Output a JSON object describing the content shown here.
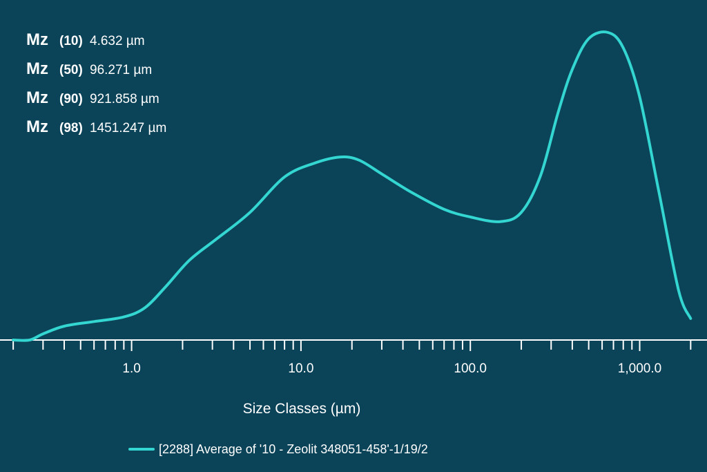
{
  "stats": [
    {
      "label": "Mz",
      "pct": "(10)",
      "value": "4.632 µm"
    },
    {
      "label": "Mz",
      "pct": "(50)",
      "value": "96.271 µm"
    },
    {
      "label": "Mz",
      "pct": "(90)",
      "value": "921.858 µm"
    },
    {
      "label": "Mz",
      "pct": "(98)",
      "value": "1451.247 µm"
    }
  ],
  "legend": {
    "label": "[2288] Average of '10 - Zeolit   348051-458'-1/19/2"
  },
  "colors": {
    "background": "#0b4359",
    "curve": "#33d6d0",
    "axis": "#ffffff"
  },
  "chart_data": {
    "type": "line",
    "xlabel": "Size Classes (µm)",
    "x_scale": "log",
    "xlim": [
      0.2,
      2000
    ],
    "ylim": [
      0,
      1
    ],
    "grid": false,
    "legend_position": "bottom",
    "x_tick_labels": [
      {
        "value": 1,
        "label": "1.0"
      },
      {
        "value": 10,
        "label": "10.0"
      },
      {
        "value": 100,
        "label": "100.0"
      },
      {
        "value": 1000,
        "label": "1,000.0"
      }
    ],
    "series": [
      {
        "name": "[2288] Average of '10 - Zeolit   348051-458'-1/19/2",
        "x": [
          0.2,
          0.25,
          0.3,
          0.4,
          0.6,
          0.9,
          1.2,
          1.6,
          2.2,
          3.2,
          5,
          8,
          12,
          17,
          22,
          30,
          45,
          70,
          100,
          150,
          200,
          260,
          330,
          400,
          500,
          650,
          800,
          1000,
          1300,
          1700,
          2000
        ],
        "y": [
          0,
          0,
          0.02,
          0.045,
          0.06,
          0.075,
          0.105,
          0.175,
          0.26,
          0.33,
          0.415,
          0.53,
          0.575,
          0.595,
          0.585,
          0.54,
          0.48,
          0.425,
          0.4,
          0.385,
          0.415,
          0.535,
          0.74,
          0.88,
          0.98,
          1.0,
          0.95,
          0.79,
          0.48,
          0.16,
          0.07
        ]
      }
    ]
  }
}
